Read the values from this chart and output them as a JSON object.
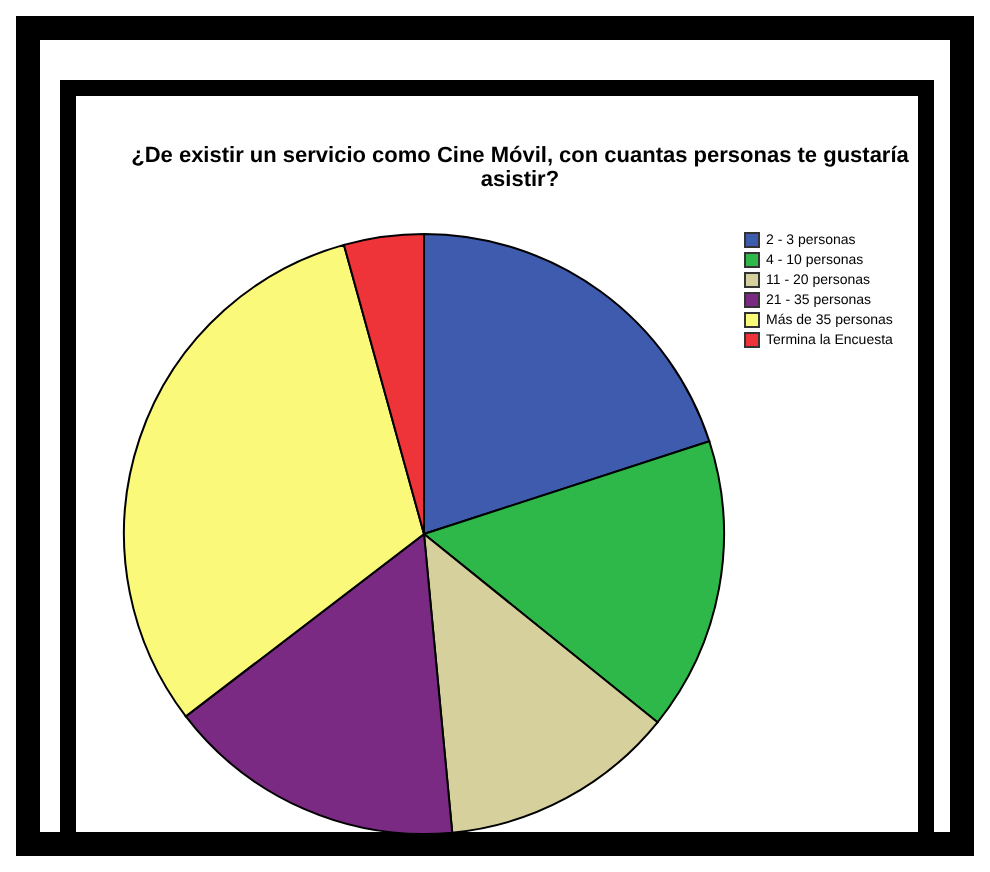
{
  "chart_data": {
    "type": "pie",
    "title": "¿De existir un servicio como Cine Móvil, con cuantas personas te gustaría asistir?",
    "categories": [
      "2 - 3 personas",
      "4 - 10 personas",
      "11 - 20 personas",
      "21 - 35 personas",
      "Más de 35 personas",
      "Termina la Encuesta"
    ],
    "values": [
      20,
      15.8,
      12.7,
      16.1,
      31.1,
      4.3
    ],
    "colors": [
      "#3f5bad",
      "#2fb84a",
      "#d6d09c",
      "#7a2a82",
      "#fbf97a",
      "#ee3438"
    ],
    "legend": "top right"
  }
}
